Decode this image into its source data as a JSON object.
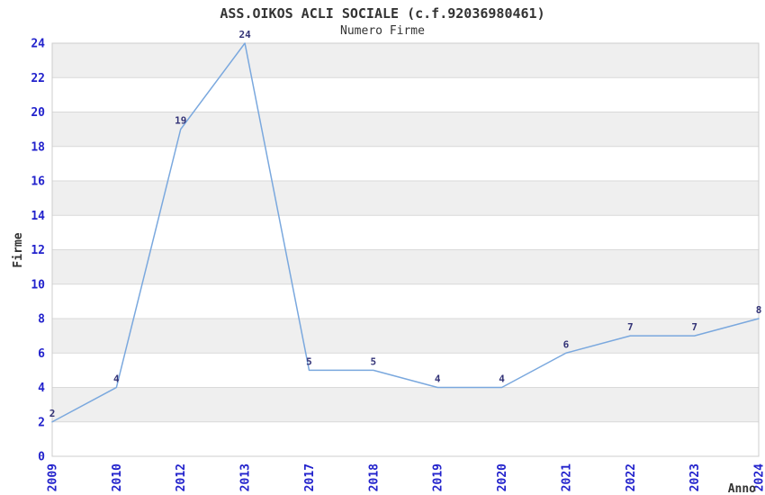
{
  "chart_data": {
    "type": "line",
    "title": "ASS.OIKOS ACLI SOCIALE (c.f.92036980461)",
    "subtitle": "Numero Firme",
    "xlabel": "Anno",
    "ylabel": "Firme",
    "categories": [
      "2009",
      "2010",
      "2012",
      "2013",
      "2017",
      "2018",
      "2019",
      "2020",
      "2021",
      "2022",
      "2023",
      "2024"
    ],
    "values": [
      2,
      4,
      19,
      24,
      5,
      5,
      4,
      4,
      6,
      7,
      7,
      8
    ],
    "ylim": [
      0,
      24
    ],
    "ytick_step": 2,
    "legend": "none",
    "grid": "horizontal gridlines with alternating shaded bands",
    "x_tick_rotation": -90,
    "colors": {
      "line": "#7aa8de",
      "data_label": "#333377",
      "tick_label": "#2222cc",
      "axis_title": "#333333",
      "title_text": "#333333",
      "band_gray": "#efefef",
      "band_white": "#ffffff",
      "gridline": "#d9d9d9",
      "plot_border": "#cccccc",
      "background": "#ffffff"
    }
  }
}
